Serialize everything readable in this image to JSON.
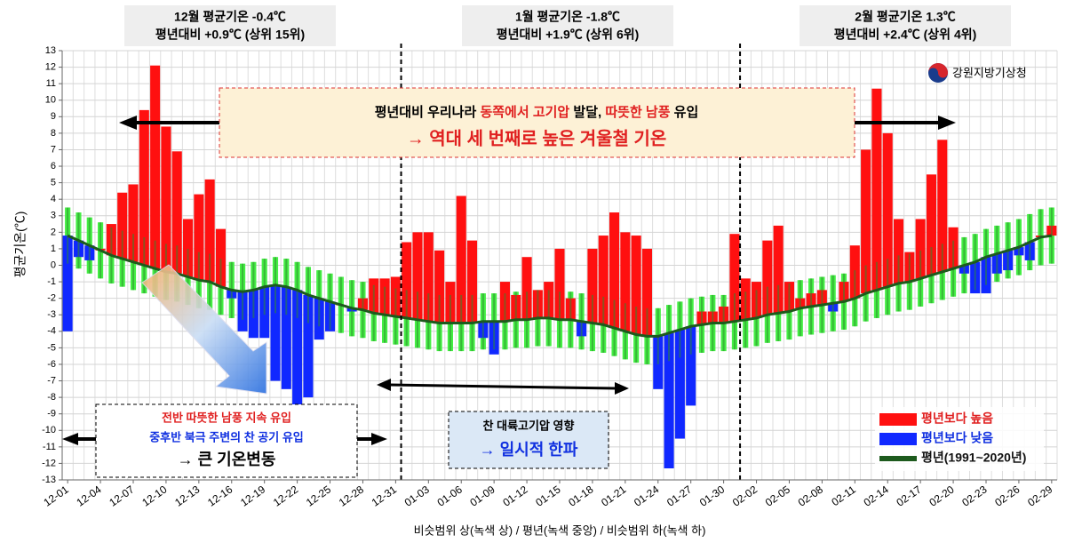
{
  "chart_data": {
    "type": "range-anomaly",
    "y_label": "평균기온(℃)",
    "x_label": "비슷범위 상(녹색 상) / 평년(녹색 중앙) / 비슷범위 하(녹색 하)",
    "source": "강원지방기상청",
    "month_summaries": [
      {
        "line1": "12월 평균기온 -0.4℃",
        "line2": "평년대비 +0.9℃ (상위 15위)"
      },
      {
        "line1": "1월 평균기온 -1.8℃",
        "line2": "평년대비 +1.9℃ (상위 6위)"
      },
      {
        "line1": "2월 평균기온 1.3℃",
        "line2": "평년대비 +2.4℃ (상위 4위)"
      }
    ],
    "annotations": {
      "top": {
        "line1": [
          "평년대비 우리나라 ",
          "동쪽에서 고기압",
          " 발달, ",
          "따뜻한 남풍",
          " 유입"
        ],
        "line2": "→ 역대 세 번째로 높은 겨울철 기온"
      },
      "left": [
        "전반 따뜻한 남풍 지속 유입",
        "중후반 북극 주변의 찬 공기 유입",
        "→ 큰 기온변동"
      ],
      "middle": [
        "찬 대륙고기압 영향",
        "→ 일시적 한파"
      ]
    },
    "categories": [
      "12-01",
      null,
      null,
      "12-04",
      null,
      null,
      "12-07",
      null,
      null,
      "12-10",
      null,
      null,
      "12-13",
      null,
      null,
      "12-16",
      null,
      null,
      "12-19",
      null,
      null,
      "12-22",
      null,
      null,
      "12-25",
      null,
      null,
      "12-28",
      null,
      null,
      "12-31",
      null,
      null,
      "01-03",
      null,
      null,
      "01-06",
      null,
      null,
      "01-09",
      null,
      null,
      "01-12",
      null,
      null,
      "01-15",
      null,
      null,
      "01-18",
      null,
      null,
      "01-21",
      null,
      null,
      "01-24",
      null,
      null,
      "01-27",
      null,
      null,
      "01-30",
      null,
      null,
      "02-02",
      null,
      null,
      "02-05",
      null,
      null,
      "02-08",
      null,
      null,
      "02-11",
      null,
      null,
      "02-14",
      null,
      null,
      "02-17",
      null,
      null,
      "02-20",
      null,
      null,
      "02-23",
      null,
      null,
      "02-26",
      null,
      null,
      "02-29"
    ],
    "temperature": [
      -4.0,
      0.5,
      0.3,
      1.0,
      2.5,
      4.4,
      4.9,
      9.4,
      12.1,
      8.4,
      6.9,
      2.8,
      4.3,
      5.2,
      2.2,
      -2.0,
      -4.0,
      -4.4,
      -4.4,
      -7.0,
      -7.5,
      -11.5,
      -8.0,
      -4.5,
      -4.0,
      -2.4,
      -2.8,
      -2.0,
      -0.8,
      -0.8,
      -0.7,
      1.4,
      2.0,
      2.0,
      0.9,
      -1.0,
      4.2,
      1.5,
      -4.4,
      -5.4,
      -1.0,
      -1.8,
      0.5,
      -1.5,
      -1.0,
      1.0,
      -2.0,
      -4.3,
      1.0,
      1.8,
      3.2,
      2.0,
      1.8,
      1.0,
      -7.5,
      -12.3,
      -10.5,
      -8.5,
      -2.8,
      -2.8,
      -2.5,
      1.9,
      -0.8,
      -1.0,
      1.5,
      2.4,
      -1.0,
      -2.0,
      -1.7,
      -1.5,
      -2.8,
      -1.0,
      1.2,
      7.0,
      10.7,
      8.0,
      2.8,
      0.8,
      2.8,
      5.5,
      7.6,
      2.3,
      -0.5,
      -1.7,
      -1.7,
      -0.5,
      -0.3,
      0.6,
      0.3,
      1.8,
      2.4
    ],
    "series": [
      {
        "name": "평년보다 높음",
        "color": "#ff1010"
      },
      {
        "name": "평년보다 낮음",
        "color": "#1028ff"
      },
      {
        "name": "평년(1991~2020년)",
        "color": "#1d5a1d",
        "values": [
          1.8,
          1.5,
          1.2,
          0.9,
          0.6,
          0.4,
          0.2,
          0.0,
          -0.2,
          -0.4,
          -0.5,
          -0.7,
          -0.9,
          -1.0,
          -1.3,
          -1.5,
          -1.6,
          -1.5,
          -1.3,
          -1.2,
          -1.3,
          -1.5,
          -1.8,
          -2.0,
          -2.2,
          -2.4,
          -2.6,
          -2.7,
          -2.9,
          -3.0,
          -3.1,
          -3.2,
          -3.3,
          -3.4,
          -3.5,
          -3.5,
          -3.5,
          -3.5,
          -3.4,
          -3.4,
          -3.4,
          -3.3,
          -3.3,
          -3.2,
          -3.2,
          -3.3,
          -3.3,
          -3.4,
          -3.5,
          -3.6,
          -3.8,
          -4.0,
          -4.2,
          -4.3,
          -4.3,
          -4.1,
          -3.9,
          -3.7,
          -3.6,
          -3.5,
          -3.5,
          -3.4,
          -3.3,
          -3.2,
          -3.0,
          -2.9,
          -2.8,
          -2.6,
          -2.5,
          -2.4,
          -2.3,
          -2.2,
          -2.0,
          -1.7,
          -1.5,
          -1.3,
          -1.1,
          -1.0,
          -0.8,
          -0.6,
          -0.4,
          -0.2,
          0.0,
          0.2,
          0.5,
          0.7,
          0.9,
          1.1,
          1.4,
          1.7,
          1.8
        ]
      }
    ],
    "range": {
      "color": "#44ee44",
      "upper": [
        3.5,
        3.2,
        2.9,
        2.6,
        2.3,
        2.1,
        1.9,
        1.7,
        1.5,
        1.3,
        1.2,
        1.0,
        0.8,
        0.7,
        0.4,
        0.2,
        0.1,
        0.2,
        0.4,
        0.5,
        0.4,
        0.2,
        -0.1,
        -0.3,
        -0.5,
        -0.7,
        -0.9,
        -1.0,
        -1.2,
        -1.3,
        -1.4,
        -1.5,
        -1.6,
        -1.7,
        -1.8,
        -1.8,
        -1.8,
        -1.8,
        -1.7,
        -1.7,
        -1.7,
        -1.6,
        -1.6,
        -1.5,
        -1.5,
        -1.6,
        -1.6,
        -1.7,
        -1.8,
        -1.9,
        -2.1,
        -2.3,
        -2.5,
        -2.6,
        -2.6,
        -2.4,
        -2.2,
        -2.0,
        -1.9,
        -1.8,
        -1.8,
        -1.7,
        -1.6,
        -1.5,
        -1.3,
        -1.2,
        -1.1,
        -0.9,
        -0.8,
        -0.7,
        -0.6,
        -0.5,
        -0.3,
        0.0,
        0.2,
        0.4,
        0.6,
        0.7,
        0.9,
        1.1,
        1.3,
        1.5,
        1.7,
        1.9,
        2.2,
        2.4,
        2.6,
        2.8,
        3.1,
        3.4,
        3.5
      ],
      "lower": [
        0.1,
        -0.2,
        -0.5,
        -0.8,
        -1.1,
        -1.3,
        -1.5,
        -1.7,
        -1.9,
        -2.1,
        -2.2,
        -2.4,
        -2.6,
        -2.7,
        -3.0,
        -3.2,
        -3.3,
        -3.2,
        -3.0,
        -2.9,
        -3.0,
        -3.2,
        -3.5,
        -3.7,
        -3.9,
        -4.1,
        -4.3,
        -4.4,
        -4.6,
        -4.7,
        -4.8,
        -4.9,
        -5.0,
        -5.1,
        -5.2,
        -5.2,
        -5.2,
        -5.2,
        -5.1,
        -5.1,
        -5.1,
        -5.0,
        -5.0,
        -4.9,
        -4.9,
        -5.0,
        -5.0,
        -5.1,
        -5.2,
        -5.3,
        -5.5,
        -5.7,
        -5.9,
        -6.0,
        -6.0,
        -5.8,
        -5.6,
        -5.4,
        -5.3,
        -5.2,
        -5.2,
        -5.1,
        -5.0,
        -4.9,
        -4.7,
        -4.6,
        -4.5,
        -4.3,
        -4.2,
        -4.1,
        -4.0,
        -3.9,
        -3.7,
        -3.4,
        -3.2,
        -3.0,
        -2.8,
        -2.7,
        -2.5,
        -2.3,
        -2.1,
        -1.9,
        -1.7,
        -1.5,
        -1.2,
        -1.0,
        -0.8,
        -0.6,
        -0.3,
        0.0,
        0.1
      ]
    },
    "ylim": [
      -13,
      13
    ],
    "yticks": [
      -13,
      -12,
      -11,
      -10,
      -9,
      -8,
      -7,
      -6,
      -5,
      -4,
      -3,
      -2,
      -1,
      0,
      1,
      2,
      3,
      4,
      5,
      6,
      7,
      8,
      9,
      10,
      11,
      12,
      13
    ],
    "grid": true
  }
}
